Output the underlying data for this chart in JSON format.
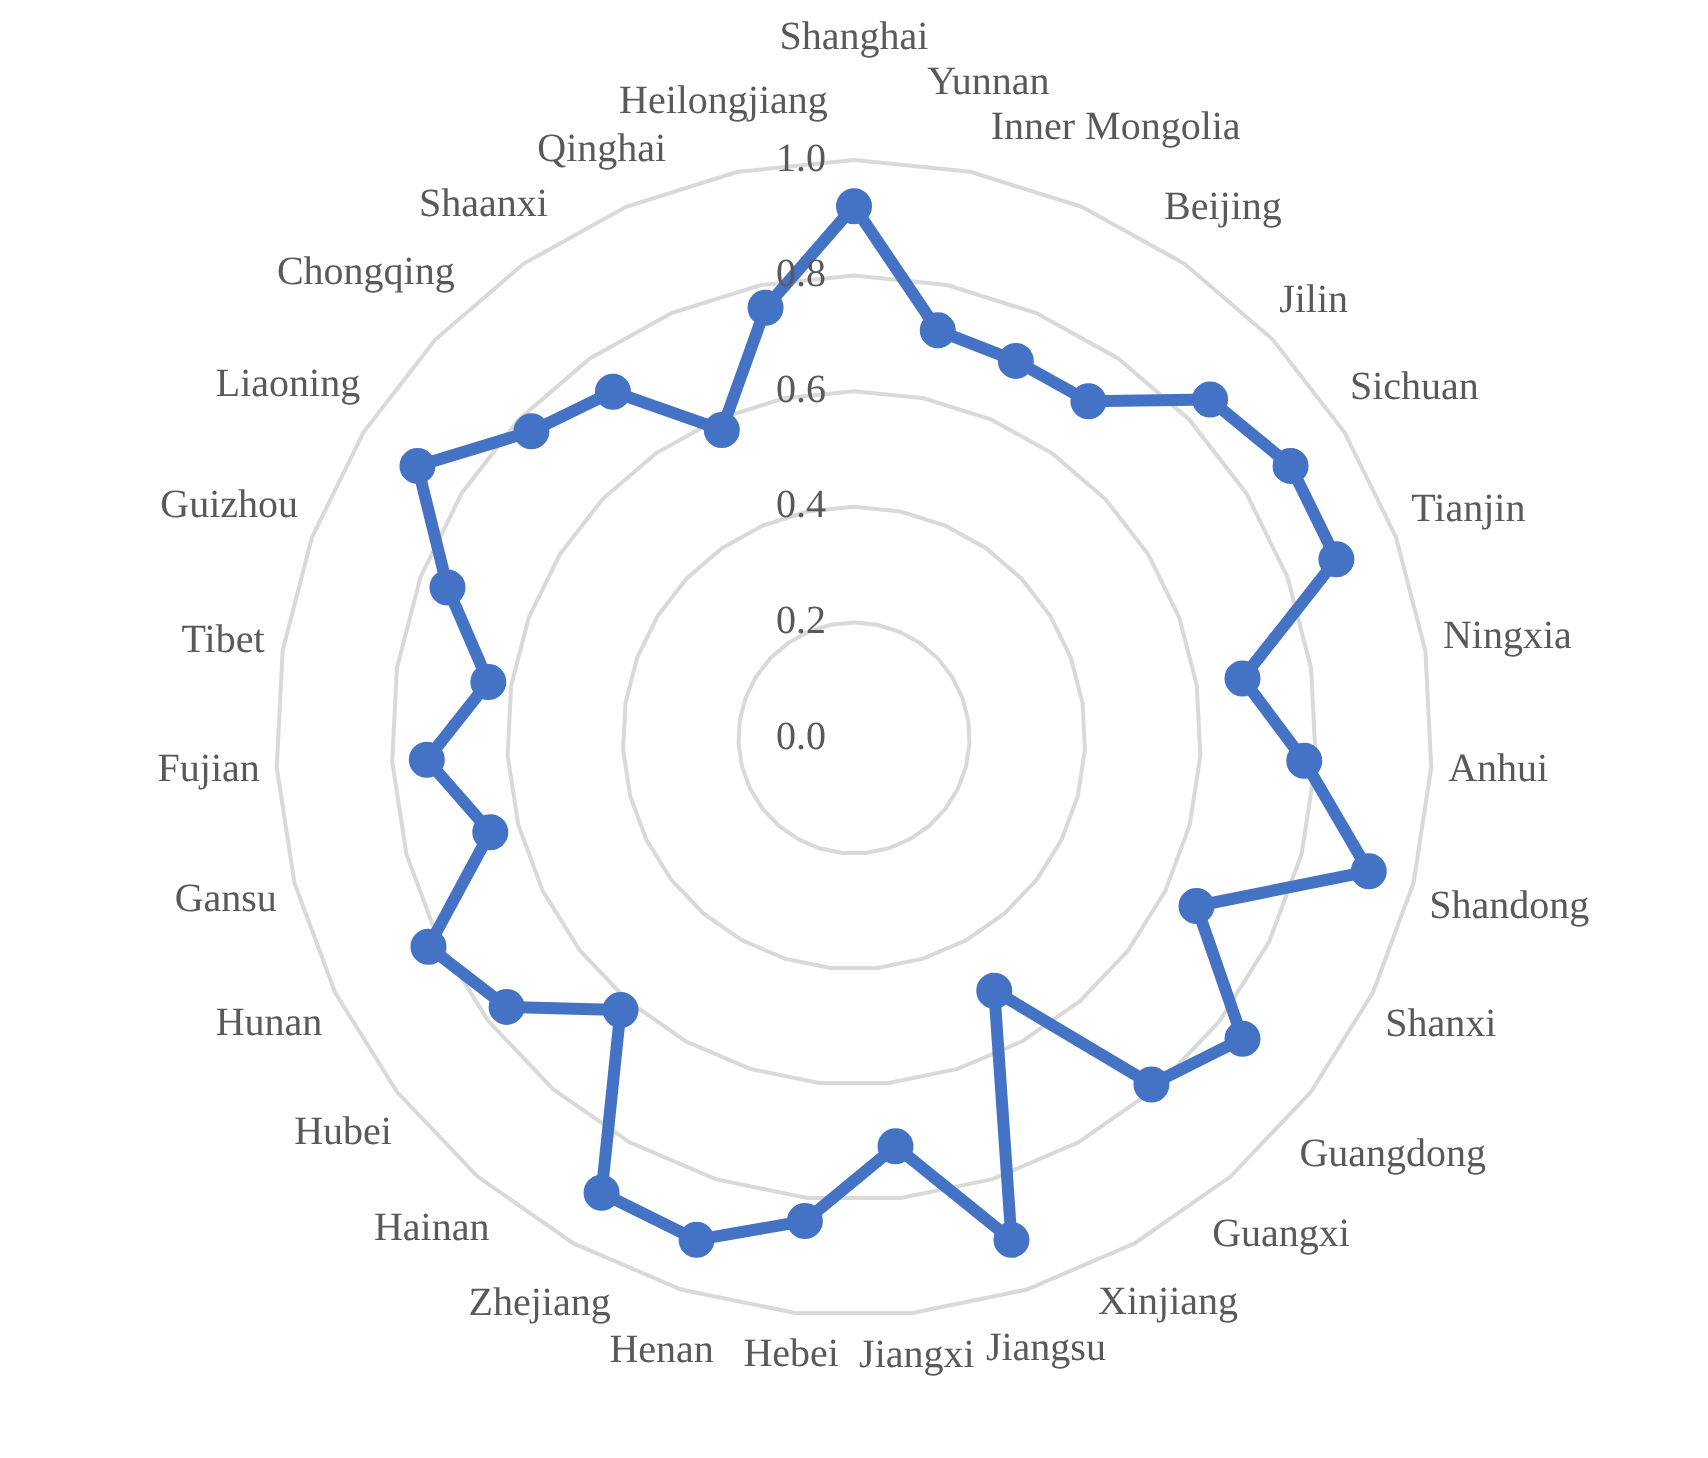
{
  "chart_data": {
    "type": "radar",
    "categories": [
      "Shanghai",
      "Yunnan",
      "Inner Mongolia",
      "Beijing",
      "Jilin",
      "Sichuan",
      "Tianjin",
      "Ningxia",
      "Anhui",
      "Shandong",
      "Shanxi",
      "Guangdong",
      "Guangxi",
      "Xinjiang",
      "Jiangsu",
      "Jiangxi",
      "Hebei",
      "Henan",
      "Zhejiang",
      "Hainan",
      "Hubei",
      "Hunan",
      "Gansu",
      "Fujian",
      "Tibet",
      "Guizhou",
      "Liaoning",
      "Chongqing",
      "Shaanxi",
      "Qinghai",
      "Heilongjiang"
    ],
    "series": [
      {
        "color": "#4472c4",
        "values": [
          0.92,
          0.72,
          0.71,
          0.71,
          0.85,
          0.89,
          0.89,
          0.68,
          0.78,
          0.92,
          0.66,
          0.85,
          0.79,
          0.5,
          0.91,
          0.71,
          0.84,
          0.91,
          0.9,
          0.62,
          0.76,
          0.82,
          0.65,
          0.74,
          0.64,
          0.75,
          0.89,
          0.77,
          0.73,
          0.58,
          0.76
        ]
      }
    ],
    "ylim": [
      0,
      1
    ],
    "yticks": [
      {
        "value": 0,
        "label": "0.0"
      },
      {
        "value": 0.2,
        "label": "0.2"
      },
      {
        "value": 0.4,
        "label": "0.4"
      },
      {
        "value": 0.6,
        "label": "0.6"
      },
      {
        "value": 0.8,
        "label": "0.8"
      },
      {
        "value": 1,
        "label": "1.0"
      }
    ],
    "grid": true,
    "marker": "circle",
    "legend": false
  }
}
